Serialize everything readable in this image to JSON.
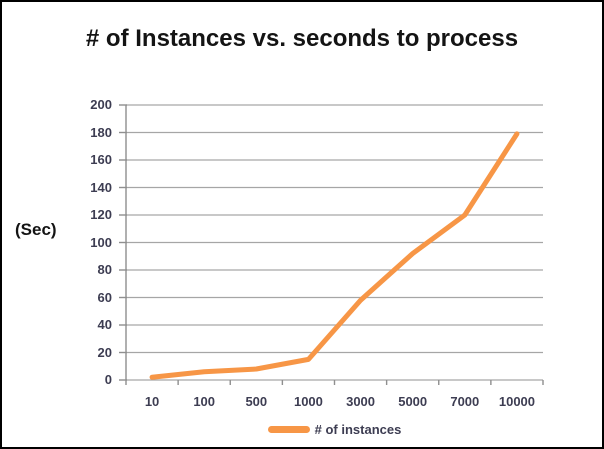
{
  "chart_data": {
    "type": "line",
    "title": "# of Instances vs. seconds to process",
    "y_axis_title": "(Sec)",
    "categories": [
      "10",
      "100",
      "500",
      "1000",
      "3000",
      "5000",
      "7000",
      "10000"
    ],
    "series": [
      {
        "name": "# of instances",
        "color": "#F79646",
        "values": [
          2,
          6,
          8,
          15,
          58,
          92,
          120,
          179
        ]
      }
    ],
    "ylim": [
      0,
      200
    ],
    "y_tick_step": 20,
    "grid": "horizontal-only",
    "legend_position": "bottom",
    "colors": {
      "line": "#F79646",
      "grid": "#A6A6A6",
      "axis": "#8F8F8F",
      "tick_label_text": "#3D3D52",
      "title_text": "#141414",
      "background": "#FFFFFF",
      "frame_border": "#000000"
    }
  }
}
